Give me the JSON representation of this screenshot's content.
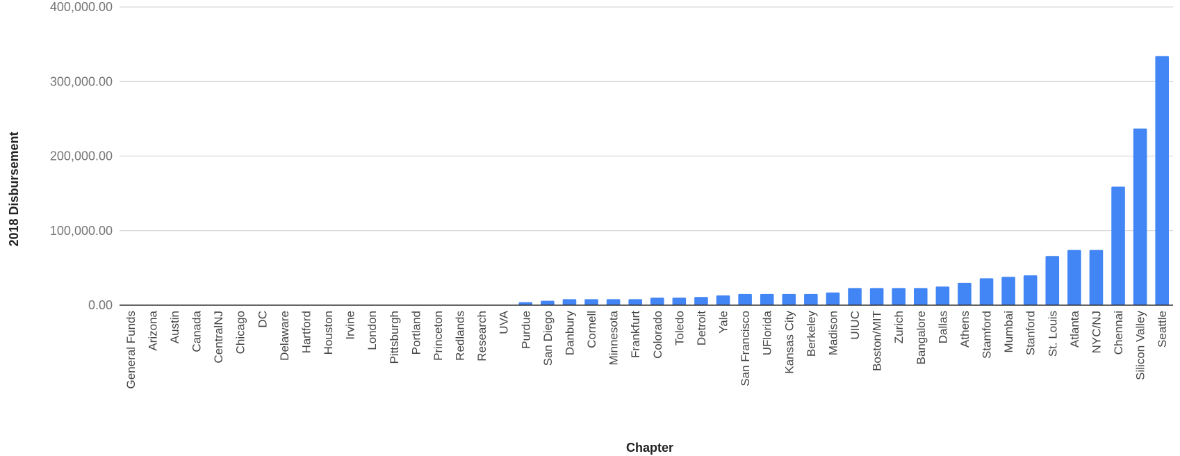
{
  "chart_data": {
    "type": "bar",
    "title": "",
    "xlabel": "Chapter",
    "ylabel": "2018 Disbursement",
    "ylim": [
      0,
      400000
    ],
    "yticks": [
      0,
      100000,
      200000,
      300000,
      400000
    ],
    "ytick_labels": [
      "0.00",
      "100,000.00",
      "200,000.00",
      "300,000.00",
      "400,000.00"
    ],
    "grid": true,
    "legend": "none",
    "bar_color": "#4285f4",
    "categories": [
      "General Funds",
      "Arizona",
      "Austin",
      "Canada",
      "CentralNJ",
      "Chicago",
      "DC",
      "Delaware",
      "Hartford",
      "Houston",
      "Irvine",
      "London",
      "Pittsburgh",
      "Portland",
      "Princeton",
      "Redlands",
      "Research",
      "UVA",
      "Purdue",
      "San Diego",
      "Danbury",
      "Cornell",
      "Minnesota",
      "Frankfurt",
      "Colorado",
      "Toledo",
      "Detroit",
      "Yale",
      "San Francisco",
      "UFlorida",
      "Kansas City",
      "Berkeley",
      "Madison",
      "UIUC",
      "Boston/MIT",
      "Zurich",
      "Bangalore",
      "Dallas",
      "Athens",
      "Stamford",
      "Mumbai",
      "Stanford",
      "St. Louis",
      "Atlanta",
      "NYC/NJ",
      "Chennai",
      "Silicon Valley",
      "Seattle"
    ],
    "values": [
      0,
      0,
      0,
      0,
      0,
      0,
      0,
      0,
      0,
      0,
      0,
      0,
      0,
      0,
      0,
      0,
      0,
      0,
      4000,
      6000,
      8000,
      8000,
      8000,
      8000,
      10000,
      10000,
      11000,
      13000,
      15000,
      15000,
      15000,
      15000,
      17000,
      23000,
      23000,
      23000,
      23000,
      25000,
      30000,
      36000,
      38000,
      40000,
      66000,
      74000,
      74000,
      159000,
      237000,
      334000
    ]
  }
}
